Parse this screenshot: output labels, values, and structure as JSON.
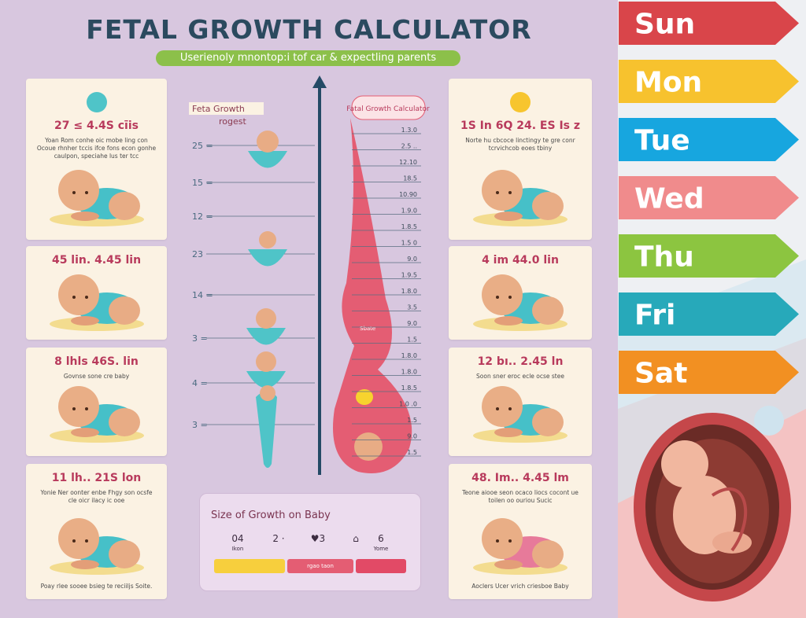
{
  "header": {
    "title": "FETAL GROWTH CALCULATOR",
    "subtitle": "Userienoly mnontop:i tof car & expectling parents"
  },
  "left_cards": [
    {
      "heading": "27 ≤ 4.4S cīis",
      "text": "Yoan Rom conhe oic mobe ling con Ocoue rhnher tccis ifce fons econ gonhe caulpon, speciahe lus ter tcc"
    },
    {
      "heading": "45 lin. 4.45 lin"
    },
    {
      "heading": "8 lhls 46S. lin",
      "text": "Govnse sone cre baby"
    },
    {
      "heading": "11 lh.. 21S lon",
      "text": "Yonie Ner oonter enbe Fhgy son ocsfe cle oicr ilacy ic ooe",
      "footer": "Poay rlee sooee bsieg te reciiljs Soite."
    }
  ],
  "right_cards": [
    {
      "heading": "1S In 6Q 24. ES Is z",
      "text": "Norte hu cbcoce linctingy te gre conr tcrvichcob eoes tbiny"
    },
    {
      "heading": "4 im 44.0 lin"
    },
    {
      "heading": "12 bı.. 2.45 ln",
      "text": "Soon sner eroc ecle ocse stee"
    },
    {
      "heading": "48. Im.. 4.45 lm",
      "text": "Teone aiooe seon ocaco liocs cocont ue toilen oo ouriou Sucic",
      "footer": "Aoclers Ucer vrich criesboe Baby"
    }
  ],
  "ruler": {
    "title": "Feta Growth",
    "subtitle": "rogest",
    "labels": [
      "25 =",
      "15 =",
      "12 =",
      "23",
      "14 =",
      "3 =",
      "4 =",
      "3 ="
    ]
  },
  "growth_chart": {
    "title": "Fatal Growth Calculator",
    "shape_label": "Sbate",
    "scale_labels": [
      "1.3.0",
      "2.5 ..",
      "12.10",
      "18.5",
      "10.90",
      "1.9.0",
      "1.8.5",
      "1.5 0",
      "9.0",
      "1.9.5",
      "1.8.0",
      "3.5",
      "9.0",
      "1.5",
      "1.8.0",
      "1.8.0",
      "1.8.5",
      "1.0 .0",
      "1.5",
      "9.0",
      "1.5"
    ]
  },
  "summary": {
    "title": "Size of Growth on Baby",
    "items": [
      {
        "value": "04",
        "caption": "Ikon"
      },
      {
        "value": "2 ·"
      },
      {
        "value": "♥3"
      },
      {
        "value": "⌂"
      },
      {
        "value": "6",
        "caption": "Yome"
      }
    ],
    "bar_label": "rgao taon"
  },
  "weekdays": [
    "Sun",
    "Mon",
    "Tue",
    "Wed",
    "Thu",
    "Fri",
    "Sat"
  ]
}
